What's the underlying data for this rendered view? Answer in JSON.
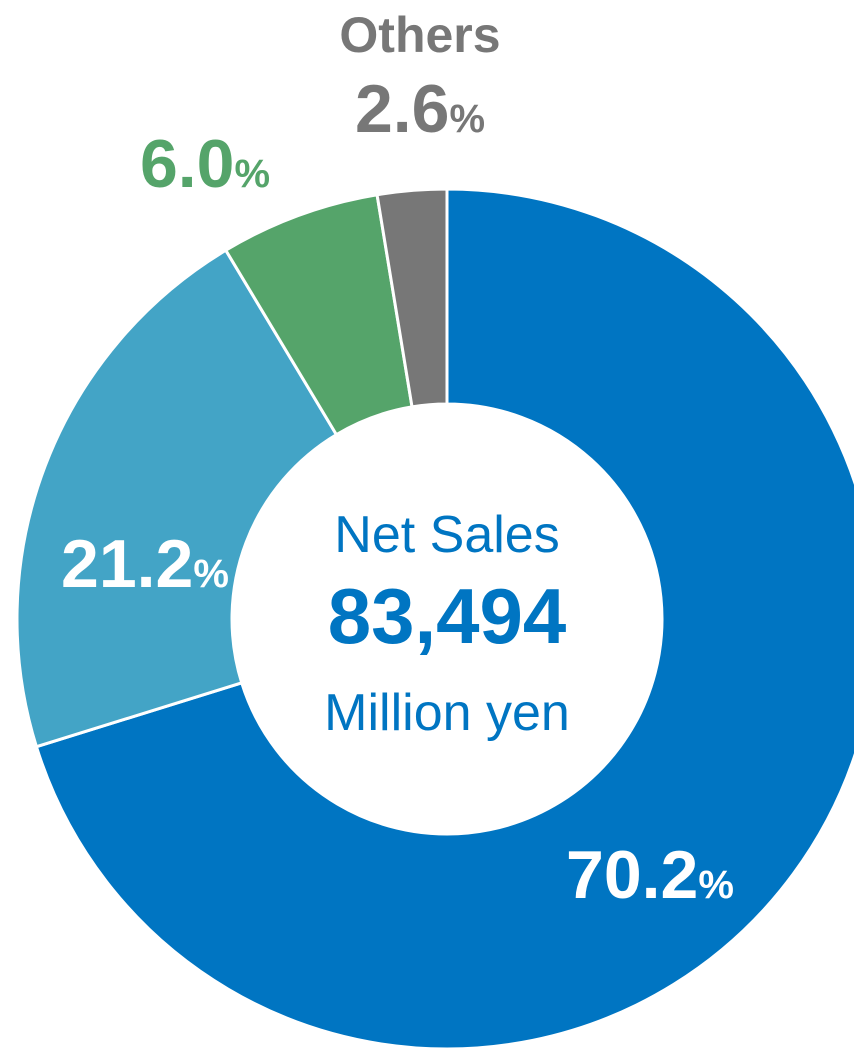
{
  "chart_data": {
    "type": "donut",
    "categories": [
      null,
      null,
      null,
      "Others"
    ],
    "values": [
      70.2,
      21.2,
      6.0,
      2.6
    ],
    "value_labels": [
      "70.2%",
      "21.2%",
      "6.0%",
      "2.6%"
    ],
    "colors": [
      "#0075c2",
      "#43a4c6",
      "#55a46a",
      "#777777"
    ],
    "center_label": {
      "title": "Net Sales",
      "value": "83,494",
      "unit": "Million yen"
    }
  }
}
